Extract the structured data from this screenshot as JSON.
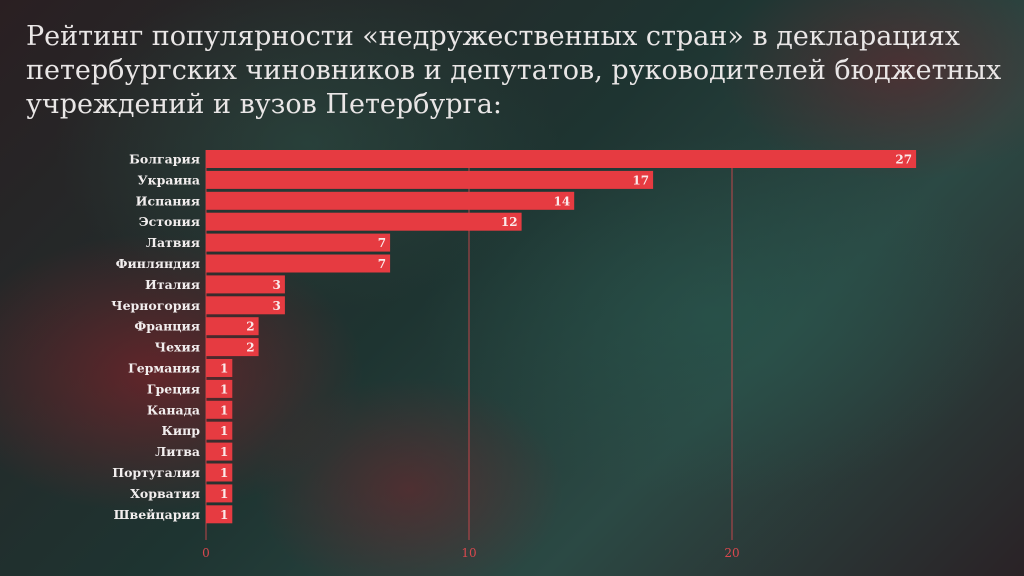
{
  "title": "Рейтинг популярности «недружественных стран» в декларациях петербургских чиновников и депутатов, руководителей бюджетных учреждений и вузов Петербурга:",
  "colors": {
    "bar": "#e63b41",
    "gridline": "#d9484e",
    "text": "#e9e6e6"
  },
  "chart_data": {
    "type": "bar",
    "orientation": "horizontal",
    "title": "Рейтинг популярности «недружественных стран» в декларациях петербургских чиновников и депутатов, руководителей бюджетных учреждений и вузов Петербурга:",
    "categories": [
      "Болгария",
      "Украина",
      "Испания",
      "Эстония",
      "Латвия",
      "Финляндия",
      "Италия",
      "Черногория",
      "Франция",
      "Чехия",
      "Германия",
      "Греция",
      "Канада",
      "Кипр",
      "Литва",
      "Португалия",
      "Хорватия",
      "Швейцария"
    ],
    "values": [
      27,
      17,
      14,
      12,
      7,
      7,
      3,
      3,
      2,
      2,
      1,
      1,
      1,
      1,
      1,
      1,
      1,
      1
    ],
    "xlim": [
      0,
      27
    ],
    "xticks": [
      0,
      10,
      20
    ],
    "grid": true,
    "legend": "none",
    "data_labels": true
  }
}
